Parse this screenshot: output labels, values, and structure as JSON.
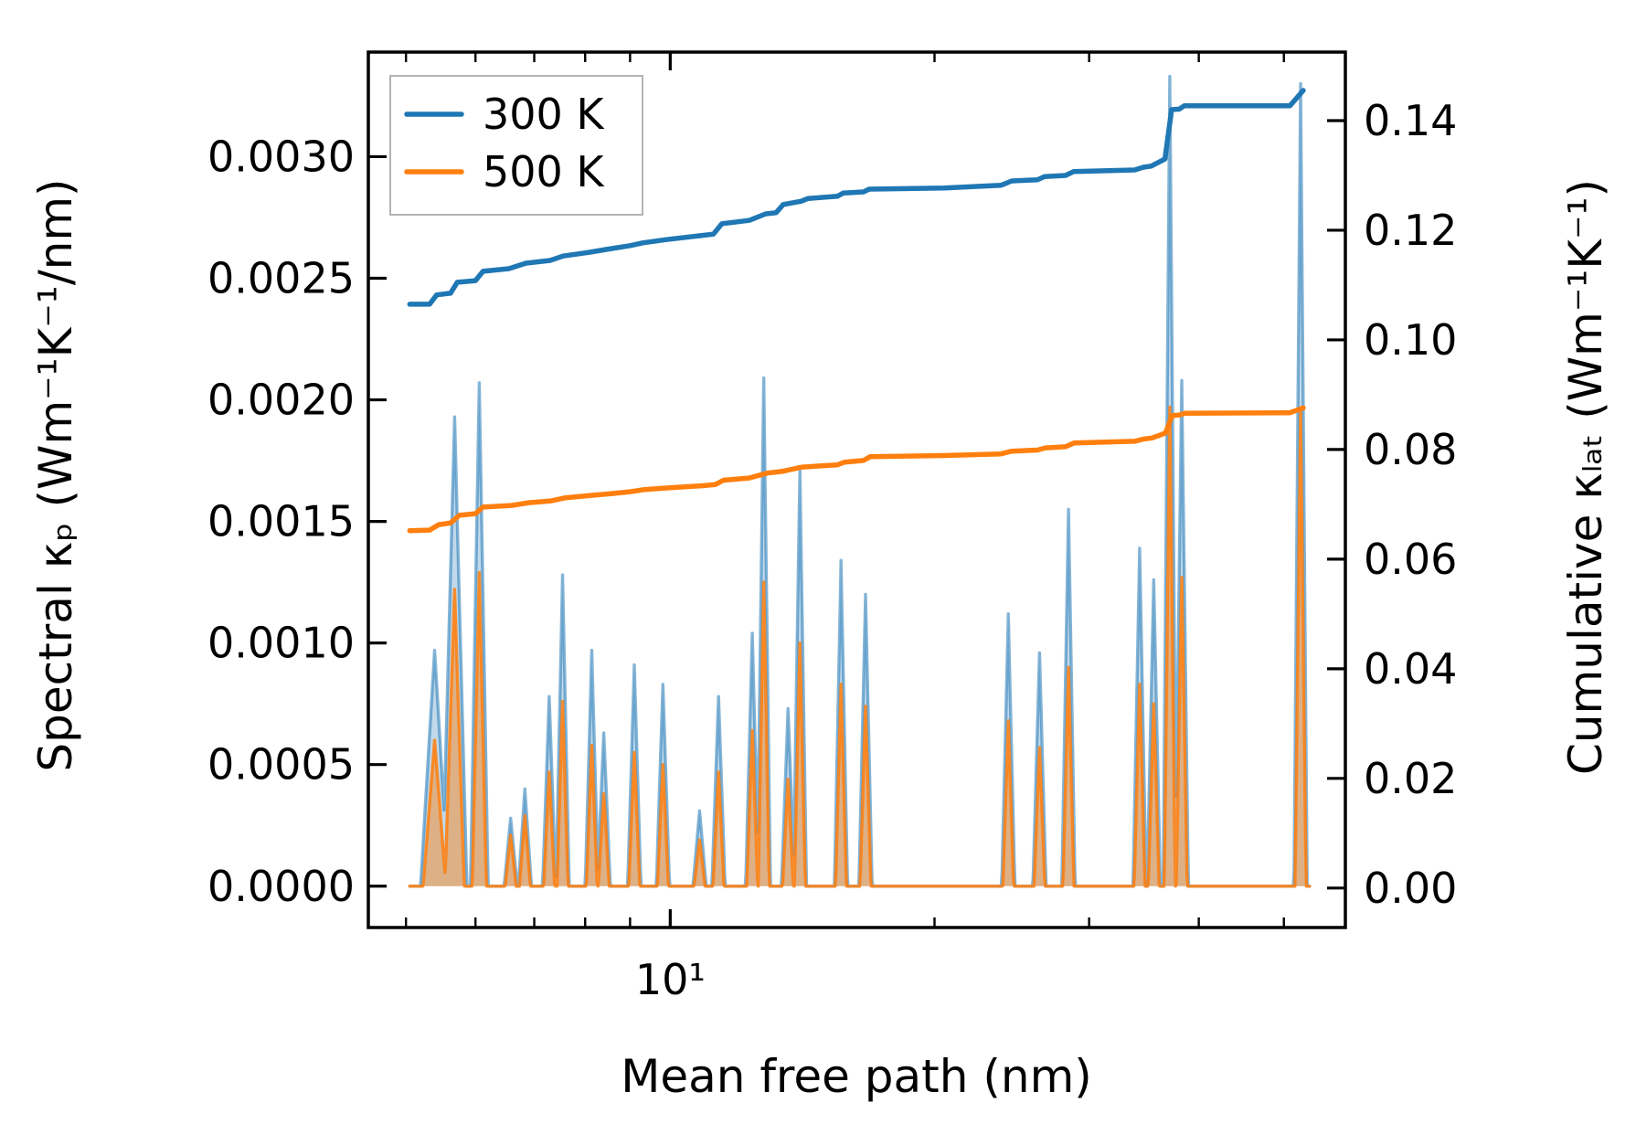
{
  "figure": {
    "background": "#ffffff"
  },
  "chart_data": {
    "type": "line",
    "title": "",
    "xlabel": "Mean free path (nm)",
    "x_scale": "log",
    "xlim": [
      4.53,
      58.75
    ],
    "grid": false,
    "legend_position": "upper left",
    "x_major_ticks": [
      {
        "value": 10,
        "label": "10¹"
      }
    ],
    "x_minor_ticks": [
      5,
      6,
      7,
      8,
      9,
      20,
      30,
      40,
      50
    ],
    "left_axis": {
      "label": "Spectral κₚ (Wm⁻¹K⁻¹/nm)",
      "lim": [
        -0.00017,
        0.00343
      ],
      "ticks": [
        0.0,
        0.0005,
        0.001,
        0.0015,
        0.002,
        0.0025,
        0.003
      ],
      "tick_labels": [
        "0.0000",
        "0.0005",
        "0.0010",
        "0.0015",
        "0.0020",
        "0.0025",
        "0.0030"
      ]
    },
    "right_axis": {
      "label": "Cumulative κₗₐₜ (Wm⁻¹K⁻¹)",
      "lim": [
        -0.0072,
        0.1525
      ],
      "ticks": [
        0.0,
        0.02,
        0.04,
        0.06,
        0.08,
        0.1,
        0.12,
        0.14
      ],
      "tick_labels": [
        "0.00",
        "0.02",
        "0.04",
        "0.06",
        "0.08",
        "0.10",
        "0.12",
        "0.14"
      ]
    },
    "legend": [
      {
        "label": "300 K",
        "color": "#1f77b4"
      },
      {
        "label": "500 K",
        "color": "#ff7f0e"
      }
    ],
    "colors": {
      "blue": "#1f77b4",
      "orange": "#ff7f0e",
      "axis": "#000000",
      "legend_border": "#b3b3b3"
    },
    "series": [
      {
        "name": "spectral-300K",
        "temperature": "300 K",
        "axis": "left",
        "style": "peaks",
        "color": "#1f77b4",
        "line_alpha": 0.55,
        "fill_alpha": 0.28,
        "baseline": [
          5.05,
          53.5
        ],
        "default_halfwidth": 0.0075,
        "peaks": [
          [
            5.39,
            0.00097,
            0.016
          ],
          [
            5.68,
            0.00193,
            0.014
          ],
          [
            6.06,
            0.00207,
            0.01
          ],
          [
            6.58,
            0.00028
          ],
          [
            6.83,
            0.0004
          ],
          [
            7.28,
            0.00078
          ],
          [
            7.54,
            0.00128
          ],
          [
            8.14,
            0.00097
          ],
          [
            8.4,
            0.00063
          ],
          [
            9.1,
            0.00091
          ],
          [
            9.81,
            0.00083
          ],
          [
            10.8,
            0.00031
          ],
          [
            11.35,
            0.00078
          ],
          [
            12.4,
            0.00104
          ],
          [
            12.78,
            0.00209
          ],
          [
            13.62,
            0.00073
          ],
          [
            14.05,
            0.00171
          ],
          [
            15.65,
            0.00134
          ],
          [
            16.69,
            0.0012
          ],
          [
            24.27,
            0.00112
          ],
          [
            26.34,
            0.00096
          ],
          [
            28.42,
            0.00155
          ],
          [
            34.25,
            0.00139
          ],
          [
            35.54,
            0.00126
          ],
          [
            37.07,
            0.00333
          ],
          [
            38.25,
            0.00208
          ],
          [
            52.24,
            0.0033
          ]
        ]
      },
      {
        "name": "spectral-500K",
        "temperature": "500 K",
        "axis": "left",
        "style": "peaks",
        "color": "#ff7f0e",
        "line_alpha": 0.85,
        "fill_alpha": 0.45,
        "baseline": [
          5.05,
          53.5
        ],
        "default_halfwidth": 0.0062,
        "peaks": [
          [
            5.39,
            0.0006,
            0.013
          ],
          [
            5.68,
            0.00122,
            0.011
          ],
          [
            6.06,
            0.00129,
            0.008
          ],
          [
            6.58,
            0.00021
          ],
          [
            6.83,
            0.00029
          ],
          [
            7.28,
            0.00047
          ],
          [
            7.54,
            0.00076
          ],
          [
            8.14,
            0.00058
          ],
          [
            8.4,
            0.00038
          ],
          [
            9.1,
            0.00055
          ],
          [
            9.81,
            0.0005
          ],
          [
            10.8,
            0.00019
          ],
          [
            11.35,
            0.00047
          ],
          [
            12.4,
            0.00064
          ],
          [
            12.78,
            0.00125
          ],
          [
            13.62,
            0.00044
          ],
          [
            14.05,
            0.001
          ],
          [
            15.65,
            0.00083
          ],
          [
            16.69,
            0.00074
          ],
          [
            24.27,
            0.00068
          ],
          [
            26.34,
            0.00057
          ],
          [
            28.42,
            0.0009
          ],
          [
            34.25,
            0.00083
          ],
          [
            35.54,
            0.00075
          ],
          [
            37.07,
            0.00197
          ],
          [
            38.25,
            0.00127
          ],
          [
            52.24,
            0.00195
          ]
        ]
      },
      {
        "name": "cumulative-300K",
        "temperature": "300 K",
        "axis": "right",
        "style": "line",
        "color": "#1f77b4",
        "line_width": 5.5,
        "points": [
          [
            5.05,
            0.1065
          ],
          [
            5.32,
            0.1065
          ],
          [
            5.42,
            0.1082
          ],
          [
            5.62,
            0.1085
          ],
          [
            5.72,
            0.1105
          ],
          [
            6.0,
            0.1108
          ],
          [
            6.12,
            0.1125
          ],
          [
            6.55,
            0.113
          ],
          [
            6.85,
            0.114
          ],
          [
            7.3,
            0.1145
          ],
          [
            7.55,
            0.1153
          ],
          [
            8.1,
            0.116
          ],
          [
            8.45,
            0.1165
          ],
          [
            9.0,
            0.1172
          ],
          [
            9.3,
            0.1177
          ],
          [
            9.9,
            0.1183
          ],
          [
            10.8,
            0.119
          ],
          [
            11.2,
            0.1193
          ],
          [
            11.45,
            0.1212
          ],
          [
            12.3,
            0.1218
          ],
          [
            12.85,
            0.123
          ],
          [
            13.2,
            0.1232
          ],
          [
            13.45,
            0.1247
          ],
          [
            14.1,
            0.1253
          ],
          [
            14.35,
            0.1258
          ],
          [
            15.5,
            0.1262
          ],
          [
            15.75,
            0.1268
          ],
          [
            16.6,
            0.127
          ],
          [
            16.85,
            0.1275
          ],
          [
            20.5,
            0.1277
          ],
          [
            23.8,
            0.1282
          ],
          [
            24.5,
            0.129
          ],
          [
            26.2,
            0.1292
          ],
          [
            26.7,
            0.1298
          ],
          [
            28.2,
            0.13
          ],
          [
            28.8,
            0.1307
          ],
          [
            33.8,
            0.131
          ],
          [
            34.6,
            0.1315
          ],
          [
            35.3,
            0.1317
          ],
          [
            35.9,
            0.1323
          ],
          [
            36.6,
            0.133
          ],
          [
            37.25,
            0.142
          ],
          [
            38.0,
            0.1421
          ],
          [
            38.5,
            0.1427
          ],
          [
            50.8,
            0.1427
          ],
          [
            52.6,
            0.1455
          ]
        ]
      },
      {
        "name": "cumulative-500K",
        "temperature": "500 K",
        "axis": "right",
        "style": "line",
        "color": "#ff7f0e",
        "line_width": 5.5,
        "points": [
          [
            5.05,
            0.0652
          ],
          [
            5.32,
            0.0653
          ],
          [
            5.45,
            0.0663
          ],
          [
            5.62,
            0.0666
          ],
          [
            5.75,
            0.068
          ],
          [
            6.0,
            0.0683
          ],
          [
            6.12,
            0.0695
          ],
          [
            6.6,
            0.0698
          ],
          [
            6.9,
            0.0703
          ],
          [
            7.3,
            0.0706
          ],
          [
            7.6,
            0.0712
          ],
          [
            8.1,
            0.0716
          ],
          [
            8.5,
            0.0719
          ],
          [
            9.0,
            0.0723
          ],
          [
            9.35,
            0.0727
          ],
          [
            9.95,
            0.073
          ],
          [
            10.9,
            0.0734
          ],
          [
            11.25,
            0.0736
          ],
          [
            11.5,
            0.0744
          ],
          [
            12.3,
            0.0748
          ],
          [
            12.9,
            0.0757
          ],
          [
            13.4,
            0.076
          ],
          [
            14.15,
            0.0768
          ],
          [
            15.5,
            0.0772
          ],
          [
            15.8,
            0.0777
          ],
          [
            16.6,
            0.078
          ],
          [
            16.9,
            0.0787
          ],
          [
            20.5,
            0.0789
          ],
          [
            23.8,
            0.0792
          ],
          [
            24.5,
            0.0797
          ],
          [
            26.2,
            0.0799
          ],
          [
            26.75,
            0.0803
          ],
          [
            28.2,
            0.0805
          ],
          [
            28.85,
            0.0812
          ],
          [
            33.8,
            0.0815
          ],
          [
            34.6,
            0.0819
          ],
          [
            35.35,
            0.0821
          ],
          [
            35.95,
            0.0825
          ],
          [
            36.65,
            0.083
          ],
          [
            37.3,
            0.0862
          ],
          [
            38.05,
            0.0863
          ],
          [
            38.55,
            0.0866
          ],
          [
            50.8,
            0.0867
          ],
          [
            52.6,
            0.0876
          ]
        ]
      }
    ]
  }
}
